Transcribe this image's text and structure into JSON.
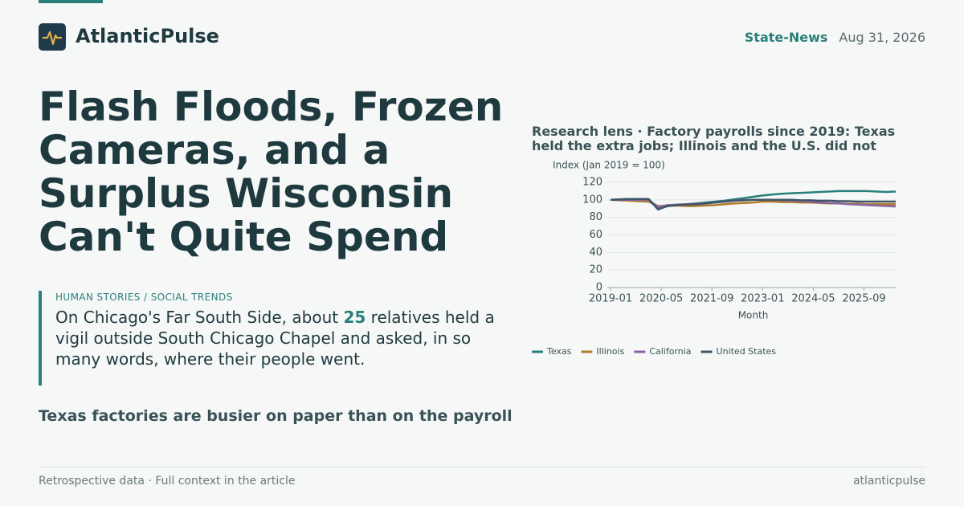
{
  "header": {
    "brand": "AtlanticPulse",
    "section": "State-News",
    "date": "Aug 31, 2026"
  },
  "headline": "Flash Floods, Frozen Cameras, and a Surplus Wisconsin Can't Quite Spend",
  "dek": {
    "kicker": "HUMAN STORIES / SOCIAL TRENDS",
    "before": "On Chicago's Far South Side, about",
    "number": "25",
    "after": "relatives held a vigil outside South Chicago Chapel and asked, in so many words, where their people went."
  },
  "subhead": "Texas factories are busier on paper than on the payroll",
  "footer": {
    "note": "Retrospective data · Full context in the article",
    "site": "atlanticpulse"
  },
  "chart_data": {
    "type": "line",
    "title": "Research lens · Factory payrolls since 2019: Texas held the extra jobs; Illinois and the U.S. did not",
    "y_label": "Index (Jan 2019 = 100)",
    "x_label": "Month",
    "x": [
      "2019-01",
      "2019-04",
      "2019-07",
      "2019-10",
      "2020-01",
      "2020-04",
      "2020-07",
      "2020-10",
      "2021-01",
      "2021-04",
      "2021-07",
      "2021-10",
      "2022-01",
      "2022-04",
      "2022-07",
      "2022-10",
      "2023-01",
      "2023-04",
      "2023-07",
      "2023-10",
      "2024-01",
      "2024-04",
      "2024-07",
      "2024-10",
      "2025-01",
      "2025-04",
      "2025-07",
      "2025-10",
      "2026-01",
      "2026-04",
      "2026-07"
    ],
    "series": [
      {
        "name": "Texas",
        "color": "#2a7f7a",
        "values": [
          100,
          100.5,
          101,
          101,
          101,
          90,
          93,
          94,
          95,
          96,
          97,
          98,
          99,
          100.5,
          102,
          103.5,
          105,
          106,
          107,
          107.5,
          108,
          108.5,
          109,
          109.5,
          110,
          110,
          110,
          110,
          109.5,
          109,
          109.5
        ]
      },
      {
        "name": "Illinois",
        "color": "#b07a2a",
        "values": [
          100,
          99.5,
          99,
          98.5,
          98,
          93,
          93,
          93.5,
          93,
          93,
          93.5,
          94,
          95,
          96,
          96.5,
          97,
          98,
          98,
          97.5,
          97.5,
          97,
          97,
          96.5,
          96,
          96,
          95.5,
          95.5,
          95,
          95,
          95,
          95
        ]
      },
      {
        "name": "California",
        "color": "#8a64a0",
        "values": [
          100,
          100,
          100,
          100,
          100,
          92,
          94,
          94.5,
          95,
          95.5,
          96,
          97,
          98,
          99,
          99.5,
          100,
          100,
          100,
          99.5,
          99,
          98.5,
          98,
          97,
          96.5,
          96,
          95,
          94.5,
          94,
          93.5,
          93,
          92.5
        ]
      },
      {
        "name": "United States",
        "color": "#3f5566",
        "values": [
          100,
          100.5,
          101,
          101,
          101,
          89,
          93,
          94,
          94.5,
          95,
          96,
          97,
          98,
          99,
          99.5,
          100,
          100,
          100,
          100,
          100,
          99.5,
          99.5,
          99,
          99,
          98.5,
          98.5,
          98,
          98,
          98,
          98,
          98
        ]
      }
    ],
    "xlim": [
      "2019-01",
      "2026-07"
    ],
    "xticks": [
      "2019-01",
      "2020-05",
      "2021-09",
      "2023-01",
      "2024-05",
      "2025-09"
    ],
    "ylim": [
      0,
      120
    ],
    "yticks": [
      0,
      20,
      40,
      60,
      80,
      100,
      120
    ],
    "grid": true,
    "legend": "bottom"
  }
}
